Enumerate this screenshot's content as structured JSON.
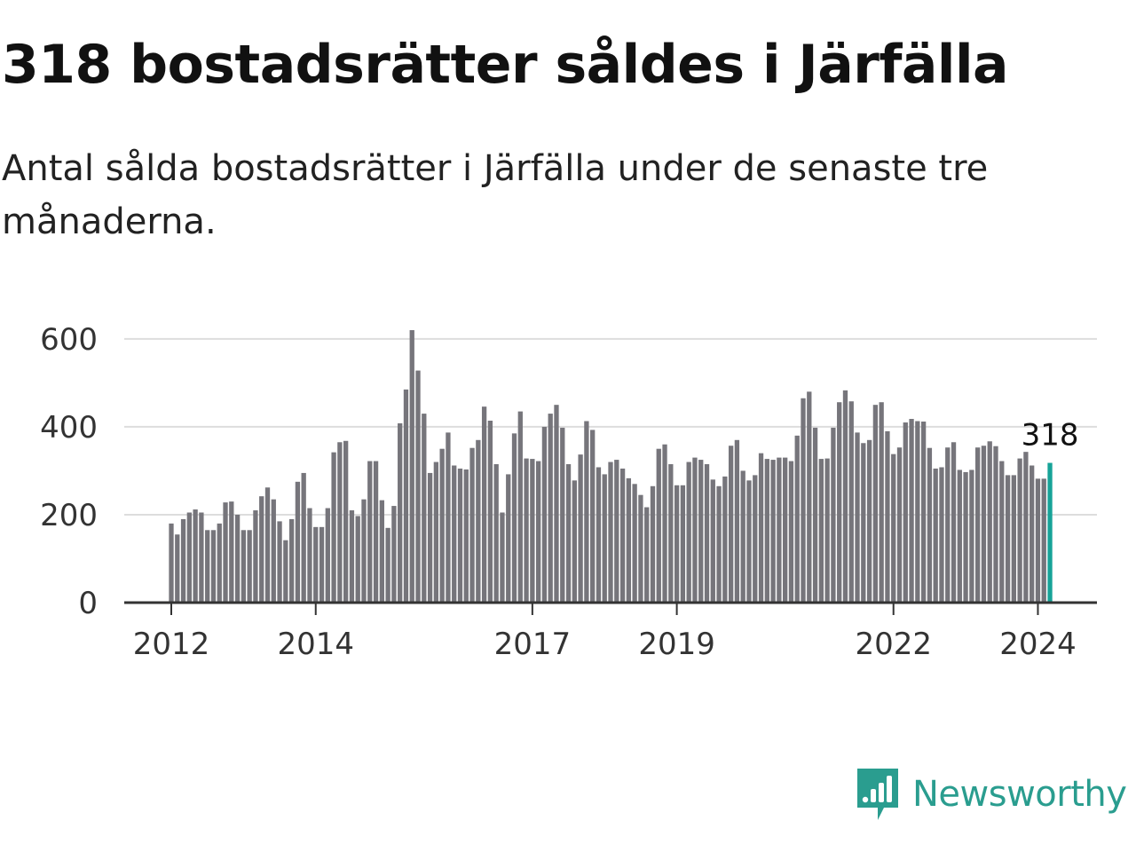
{
  "header": {
    "title": "318 bostadsrätter såldes i Järfälla",
    "subtitle": "Antal sålda bostadsrätter i Järfälla under de senaste tre månaderna."
  },
  "brand": {
    "name": "Newsworthy",
    "icon": "newsworthy-logo-icon",
    "color": "#2a9d8f"
  },
  "colors": {
    "bar": "#76757b",
    "highlight": "#17a398",
    "grid": "#dddddd",
    "axis": "#333333"
  },
  "chart_data": {
    "type": "bar",
    "title": "318 bostadsrätter såldes i Järfälla",
    "subtitle": "Antal sålda bostadsrätter i Järfälla under de senaste tre månaderna.",
    "ylim": [
      0,
      620
    ],
    "yticks": [
      0,
      200,
      400,
      600
    ],
    "grid": true,
    "xticks": [
      "2012",
      "2014",
      "2017",
      "2019",
      "2022",
      "2024"
    ],
    "series": [
      {
        "values": [
          180,
          155,
          190,
          205,
          212,
          205,
          165,
          165,
          180,
          228,
          230,
          200,
          165,
          165,
          210,
          242,
          262,
          235,
          185,
          142,
          190,
          275,
          295,
          215,
          172,
          172,
          215,
          342,
          365,
          368,
          210,
          197,
          235,
          322,
          322,
          233,
          170,
          220,
          408,
          485,
          620,
          528,
          430,
          295,
          320,
          350,
          387,
          312,
          305,
          303,
          352,
          370,
          446,
          414,
          315,
          205,
          292,
          385,
          435,
          328,
          327,
          322,
          400,
          430,
          450,
          398,
          315,
          278,
          337,
          413,
          393,
          308,
          292,
          320,
          325,
          305,
          283,
          270,
          245,
          217,
          265,
          350,
          360,
          315,
          267,
          267,
          320,
          330,
          325,
          315,
          280,
          265,
          287,
          357,
          370,
          300,
          278,
          290,
          340,
          327,
          325,
          330,
          330,
          322,
          380,
          465,
          480,
          398,
          327,
          328,
          398,
          456,
          483,
          458,
          387,
          363,
          370,
          450,
          456,
          390,
          338,
          353,
          410,
          418,
          413,
          412,
          352,
          305,
          308,
          353,
          365,
          302,
          297,
          302,
          353,
          357,
          367,
          356,
          322,
          290,
          290,
          328,
          343,
          312,
          282,
          282,
          318
        ]
      }
    ],
    "highlight": {
      "label": "318",
      "value": 318
    }
  }
}
